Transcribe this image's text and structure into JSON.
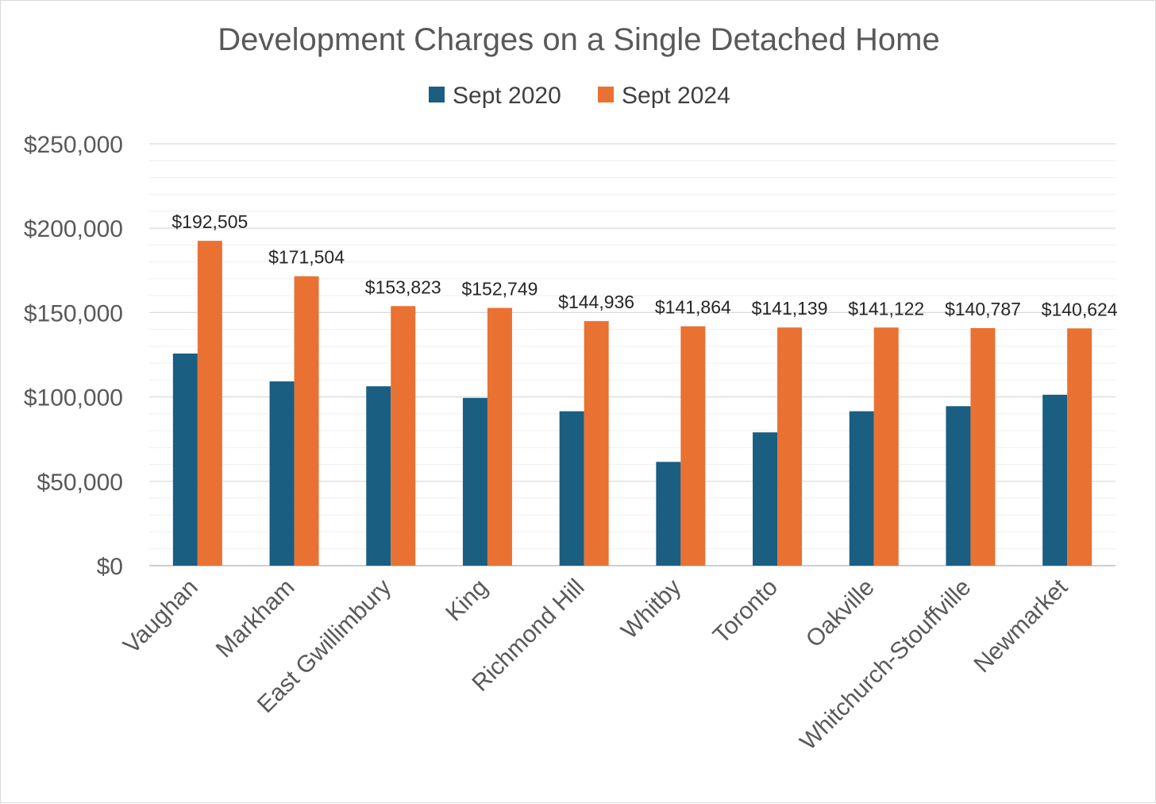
{
  "chart_data": {
    "type": "bar",
    "title": "Development Charges on a Single Detached Home",
    "xlabel": "",
    "ylabel": "",
    "categories": [
      "Vaughan",
      "Markham",
      "East Gwillimbury",
      "King",
      "Richmond Hill",
      "Whitby",
      "Toronto",
      "Oakville",
      "Whitchurch-Stouffville",
      "Newmarket"
    ],
    "series": [
      {
        "name": "Sept 2020",
        "color": "#1a5e82",
        "values": [
          125700,
          109200,
          106300,
          99400,
          91500,
          61500,
          79000,
          91500,
          94500,
          101300
        ]
      },
      {
        "name": "Sept 2024",
        "color": "#e97132",
        "values": [
          192505,
          171504,
          153823,
          152749,
          144936,
          141864,
          141139,
          141122,
          140787,
          140624
        ],
        "data_labels": [
          "$192,505",
          "$171,504",
          "$153,823",
          "$152,749",
          "$144,936",
          "$141,864",
          "$141,139",
          "$141,122",
          "$140,787",
          "$140,624"
        ]
      }
    ],
    "ylim": [
      0,
      250000
    ],
    "yticks": [
      0,
      50000,
      100000,
      150000,
      200000,
      250000
    ],
    "ytick_labels": [
      "$0",
      "$50,000",
      "$100,000",
      "$150,000",
      "$200,000",
      "$250,000"
    ],
    "minor_step": 10000,
    "grid": true,
    "legend_position": "top"
  }
}
